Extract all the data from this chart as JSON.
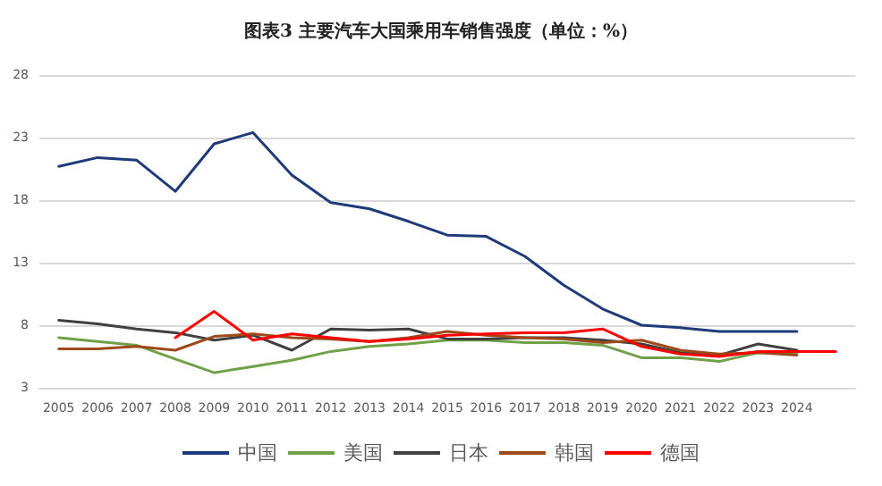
{
  "chart_data": {
    "type": "line",
    "title": "图表3 主要汽车大国乘用车销售强度（单位：%）",
    "categories": [
      "2005",
      "2006",
      "2007",
      "2008",
      "2009",
      "2010",
      "2011",
      "2012",
      "2013",
      "2014",
      "2015",
      "2016",
      "2017",
      "2018",
      "2019",
      "2020",
      "2021",
      "2022",
      "2023",
      "2024",
      null
    ],
    "series": [
      {
        "name": "中国",
        "color": "#1f3a78",
        "values": [
          20.7,
          21.4,
          21.2,
          18.7,
          22.5,
          23.4,
          20.0,
          17.8,
          17.3,
          16.3,
          15.2,
          15.1,
          13.5,
          11.2,
          9.3,
          8.0,
          7.8,
          7.5,
          7.5,
          7.5,
          null
        ]
      },
      {
        "name": "美国",
        "color": "#70a048",
        "values": [
          7.0,
          6.7,
          6.4,
          5.3,
          4.2,
          4.7,
          5.2,
          5.9,
          6.3,
          6.5,
          6.8,
          6.8,
          6.6,
          6.6,
          6.4,
          5.4,
          5.4,
          5.1,
          5.8,
          5.8,
          null
        ]
      },
      {
        "name": "日本",
        "color": "#404040",
        "values": [
          8.4,
          8.1,
          7.7,
          7.4,
          6.8,
          7.2,
          6.0,
          7.7,
          7.6,
          7.7,
          6.9,
          6.9,
          7.0,
          7.0,
          6.8,
          6.5,
          5.8,
          5.6,
          6.5,
          6.0,
          null
        ]
      },
      {
        "name": "韩国",
        "color": "#9c4a1a",
        "values": [
          6.1,
          6.1,
          6.3,
          6.0,
          7.1,
          7.3,
          7.0,
          6.9,
          6.7,
          7.0,
          7.5,
          7.2,
          7.0,
          6.9,
          6.6,
          6.8,
          6.0,
          5.7,
          5.8,
          5.6,
          null
        ]
      },
      {
        "name": "德国",
        "color": "#ff0000",
        "values": [
          null,
          null,
          null,
          7.0,
          9.1,
          6.8,
          7.3,
          7.0,
          6.7,
          6.9,
          7.2,
          7.3,
          7.4,
          7.4,
          7.7,
          6.3,
          5.7,
          5.5,
          5.9,
          5.9,
          5.9
        ]
      }
    ],
    "ylim": [
      3,
      28
    ],
    "yticks": [
      3,
      8,
      13,
      18,
      23,
      28
    ],
    "grid": "y",
    "legend": "bottom",
    "marker": "none",
    "line_style": "solid"
  }
}
